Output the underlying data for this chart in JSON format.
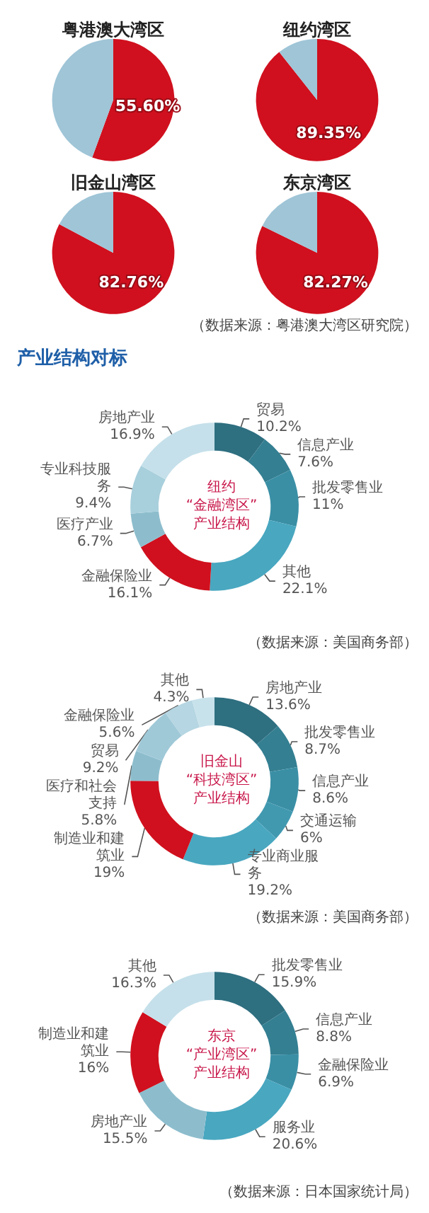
{
  "chart_data": [
    {
      "type": "pie",
      "title": "粤港澳大湾区",
      "categories": [
        null,
        null
      ],
      "values": [
        55.6,
        44.4
      ],
      "colors": [
        "#d0101e",
        "#9fc5d7"
      ],
      "value_labels": [
        "55.60%",
        null
      ]
    },
    {
      "type": "pie",
      "title": "纽约湾区",
      "categories": [
        null,
        null
      ],
      "values": [
        89.35,
        10.65
      ],
      "colors": [
        "#d0101e",
        "#9fc5d7"
      ],
      "value_labels": [
        "89.35%",
        null
      ]
    },
    {
      "type": "pie",
      "title": "旧金山湾区",
      "categories": [
        null,
        null
      ],
      "values": [
        82.76,
        17.24
      ],
      "colors": [
        "#d0101e",
        "#9fc5d7"
      ],
      "value_labels": [
        "82.76%",
        null
      ]
    },
    {
      "type": "pie",
      "title": "东京湾区",
      "categories": [
        null,
        null
      ],
      "values": [
        82.27,
        17.73
      ],
      "colors": [
        "#d0101e",
        "#9fc5d7"
      ],
      "value_labels": [
        "82.27%",
        null
      ],
      "annotations": [
        "（数据来源：粤港澳大湾区研究院）"
      ]
    },
    {
      "type": "other",
      "title": "产业结构对标"
    },
    {
      "type": "donut",
      "title": "纽约\n“金融湾区”\n产业结构",
      "categories": [
        "贸易",
        "信息产业",
        "批发零售业",
        "其他",
        "金融保险业",
        "医疗产业",
        "专业科技服务",
        "房地产业"
      ],
      "values": [
        10.2,
        7.6,
        11,
        22.1,
        16.1,
        6.7,
        9.4,
        16.9
      ],
      "value_labels": [
        "10.2%",
        "7.6%",
        "11%",
        "22.1%",
        "16.1%",
        "6.7%",
        "9.4%",
        "16.9%"
      ],
      "colors": [
        "#2e6f80",
        "#347f92",
        "#3a8fa5",
        "#49a7c0",
        "#d0101e",
        "#8dbdcd",
        "#a8cfdc",
        "#c5e0ea"
      ],
      "annotations": [
        "（数据来源：美国商务部）"
      ]
    },
    {
      "type": "donut",
      "title": "旧金山\n“科技湾区”\n产业结构",
      "categories": [
        "房地产业",
        "批发零售业",
        "信息产业",
        "交通运输",
        "专业商业服务",
        "制造业和建筑业",
        "医疗和社会支持",
        "贸易",
        "金融保险业",
        "其他"
      ],
      "values": [
        13.6,
        8.7,
        8.6,
        6,
        19.2,
        19,
        5.8,
        9.2,
        5.6,
        4.3
      ],
      "value_labels": [
        "13.6%",
        "8.7%",
        "8.6%",
        "6%",
        "19.2%",
        "19%",
        "5.8%",
        "9.2%",
        "5.6%",
        "4.3%"
      ],
      "colors": [
        "#2e6f80",
        "#347f92",
        "#3a8fa5",
        "#4199b0",
        "#49a7c0",
        "#d0101e",
        "#8dbdcd",
        "#a0c9d8",
        "#b5d6e2",
        "#c8e2eb"
      ],
      "annotations": [
        "（数据来源：美国商务部）"
      ]
    },
    {
      "type": "donut",
      "title": "东京\n“产业湾区”\n产业结构",
      "categories": [
        "批发零售业",
        "信息产业",
        "金融保险业",
        "服务业",
        "房地产业",
        "制造业和建筑业",
        "其他"
      ],
      "values": [
        15.9,
        8.8,
        6.9,
        20.6,
        15.5,
        16,
        16.3
      ],
      "value_labels": [
        "15.9%",
        "8.8%",
        "6.9%",
        "20.6%",
        "15.5%",
        "16%",
        "16.3%"
      ],
      "colors": [
        "#2e6f80",
        "#347f92",
        "#3a8fa5",
        "#49a7c0",
        "#8dbdcd",
        "#d0101e",
        "#c5e0ea"
      ],
      "annotations": [
        "（数据来源：日本国家统计局）"
      ]
    }
  ]
}
